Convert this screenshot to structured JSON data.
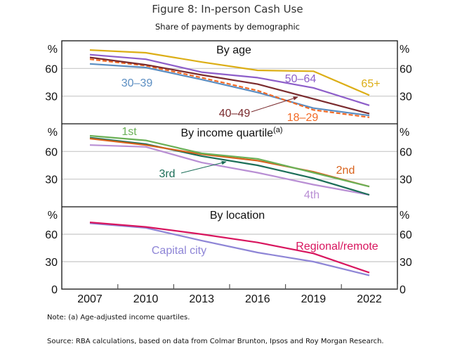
{
  "chart_data": {
    "type": "line",
    "title": "Figure 8: In-person Cash Use",
    "subtitle": "Share of payments by demographic",
    "x": [
      2007,
      2010,
      2013,
      2016,
      2019,
      2022
    ],
    "x_tick_labels": [
      "2007",
      "2010",
      "2013",
      "2016",
      "2019",
      "2022"
    ],
    "xlim": [
      2005.5,
      2024
    ],
    "panels": [
      {
        "title": "By age",
        "title_superscript": "",
        "unit_left": "%",
        "unit_right": "%",
        "ylim": [
          0,
          90
        ],
        "y_ticks": [
          30,
          60
        ],
        "y_tick_labels": [
          "30",
          "60"
        ],
        "grid": true,
        "series": [
          {
            "name": "65+",
            "label": "65+",
            "color": "#dcae16",
            "dashed": false,
            "values": [
              80,
              77,
              67,
              58,
              57,
              31
            ]
          },
          {
            "name": "50–64",
            "label": "50–64",
            "color": "#8d5ec9",
            "dashed": false,
            "values": [
              75,
              70,
              56,
              50,
              39,
              20
            ]
          },
          {
            "name": "40–49",
            "label": "40–49",
            "color": "#7a2b2e",
            "dashed": false,
            "values": [
              72,
              64,
              53,
              43,
              27,
              11
            ]
          },
          {
            "name": "18–29",
            "label": "18–29",
            "color": "#f26a25",
            "dashed": true,
            "values": [
              70,
              63,
              50,
              36,
              15,
              7
            ]
          },
          {
            "name": "30–39",
            "label": "30–39",
            "color": "#5b8ec2",
            "dashed": false,
            "values": [
              65,
              61,
              48,
              34,
              17,
              9
            ]
          }
        ]
      },
      {
        "title": "By income quartile",
        "title_superscript": "(a)",
        "unit_left": "%",
        "unit_right": "%",
        "ylim": [
          0,
          90
        ],
        "y_ticks": [
          30,
          60
        ],
        "y_tick_labels": [
          "30",
          "60"
        ],
        "grid": true,
        "series": [
          {
            "name": "1st",
            "label": "1st",
            "color": "#6ab056",
            "dashed": false,
            "values": [
              77,
              72,
              58,
              52,
              37,
              22
            ]
          },
          {
            "name": "2nd",
            "label": "2nd",
            "color": "#d8621c",
            "dashed": false,
            "values": [
              74,
              67,
              57,
              50,
              38,
              22
            ]
          },
          {
            "name": "3rd",
            "label": "3rd",
            "color": "#1c6e58",
            "dashed": false,
            "values": [
              75,
              68,
              55,
              45,
              31,
              13
            ]
          },
          {
            "name": "4th",
            "label": "4th",
            "color": "#b98fd4",
            "dashed": false,
            "values": [
              67,
              65,
              48,
              37,
              24,
              13
            ]
          }
        ]
      },
      {
        "title": "By location",
        "title_superscript": "",
        "unit_left": "%",
        "unit_right": "%",
        "ylim": [
          0,
          90
        ],
        "y_ticks": [
          0,
          30,
          60
        ],
        "y_tick_labels": [
          "0",
          "30",
          "60"
        ],
        "grid": true,
        "series": [
          {
            "name": "Regional/remote",
            "label": "Regional/remote",
            "color": "#d8155e",
            "dashed": false,
            "values": [
              73,
              68,
              60,
              51,
              39,
              18
            ]
          },
          {
            "name": "Capital city",
            "label": "Capital city",
            "color": "#8e85d6",
            "dashed": false,
            "values": [
              72,
              67,
              53,
              40,
              30,
              15
            ]
          }
        ]
      }
    ]
  },
  "footer": {
    "note": "Note: (a) Age-adjusted income quartiles.",
    "source": "Source: RBA calculations, based on data from Colmar Brunton, Ipsos and Roy Morgan Research."
  }
}
